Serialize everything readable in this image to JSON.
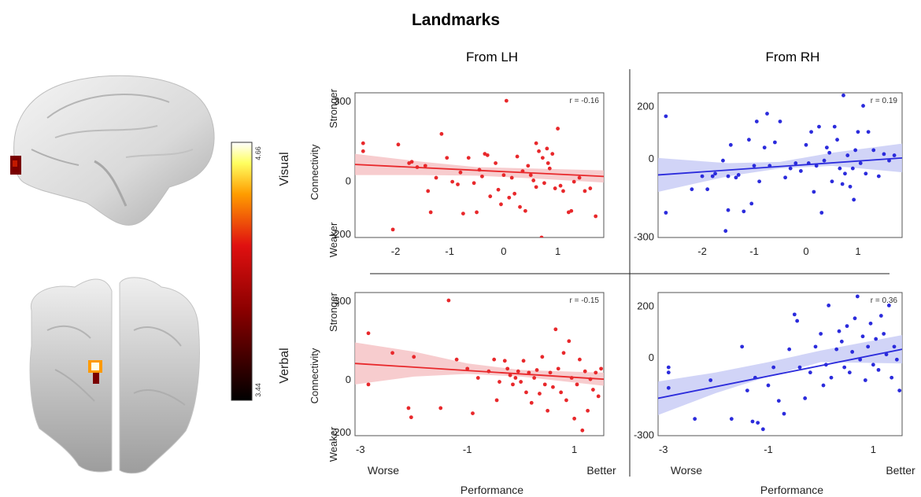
{
  "title": "Landmarks",
  "column_headers": [
    "From LH",
    "From RH"
  ],
  "colorbar": {
    "max_label": "4.66",
    "min_label": "3.44",
    "top_label": "Visual",
    "bottom_label": "Verbal"
  },
  "labels": {
    "stronger": "Stronger",
    "weaker": "Weaker",
    "connectivity": "Connectivity",
    "worse": "Worse",
    "better": "Better",
    "performance": "Performance"
  },
  "colors": {
    "lh": "#e8282b",
    "lh_band": "#f6c3c6",
    "rh": "#2b2bdc",
    "rh_band": "#c9cdf6"
  },
  "chart_data": [
    {
      "id": "visual-lh",
      "type": "scatter",
      "color": "lh",
      "r_label": "r = -0.16",
      "xlim": [
        -2.75,
        1.85
      ],
      "ylim": [
        -215,
        330
      ],
      "xticks": [
        -2,
        -1,
        0,
        1
      ],
      "yticks": [
        300,
        0,
        -200
      ],
      "fit": {
        "x": [
          -2.75,
          1.85
        ],
        "y": [
          60,
          15
        ]
      },
      "band_upper": [
        [
          -2.75,
          100
        ],
        [
          -1.5,
          70
        ],
        [
          -0.5,
          50
        ],
        [
          0.5,
          45
        ],
        [
          1.85,
          38
        ]
      ],
      "band_lower": [
        [
          -2.75,
          20
        ],
        [
          -1.5,
          20
        ],
        [
          -0.5,
          18
        ],
        [
          0.5,
          8
        ],
        [
          1.85,
          -8
        ]
      ],
      "points": [
        [
          -2.6,
          140
        ],
        [
          -2.6,
          110
        ],
        [
          -2.05,
          -185
        ],
        [
          -1.95,
          135
        ],
        [
          -1.75,
          65
        ],
        [
          -1.7,
          70
        ],
        [
          -1.6,
          50
        ],
        [
          -1.45,
          55
        ],
        [
          -1.4,
          -40
        ],
        [
          -1.35,
          -120
        ],
        [
          -1.25,
          10
        ],
        [
          -1.15,
          175
        ],
        [
          -1.05,
          85
        ],
        [
          -0.95,
          -5
        ],
        [
          -0.85,
          -15
        ],
        [
          -0.8,
          30
        ],
        [
          -0.75,
          -125
        ],
        [
          -0.65,
          85
        ],
        [
          -0.55,
          -10
        ],
        [
          -0.5,
          -120
        ],
        [
          -0.45,
          40
        ],
        [
          -0.4,
          15
        ],
        [
          -0.35,
          100
        ],
        [
          -0.3,
          95
        ],
        [
          -0.25,
          -60
        ],
        [
          -0.15,
          65
        ],
        [
          -0.1,
          -35
        ],
        [
          -0.05,
          -90
        ],
        [
          0.0,
          20
        ],
        [
          0.05,
          300
        ],
        [
          0.1,
          -65
        ],
        [
          0.15,
          10
        ],
        [
          0.2,
          -50
        ],
        [
          0.25,
          90
        ],
        [
          0.3,
          -100
        ],
        [
          0.35,
          35
        ],
        [
          0.4,
          -115
        ],
        [
          0.45,
          55
        ],
        [
          0.5,
          20
        ],
        [
          0.55,
          0
        ],
        [
          0.6,
          -25
        ],
        [
          0.6,
          140
        ],
        [
          0.65,
          110
        ],
        [
          0.7,
          -215
        ],
        [
          0.72,
          85
        ],
        [
          0.75,
          -10
        ],
        [
          0.8,
          120
        ],
        [
          0.82,
          65
        ],
        [
          0.85,
          45
        ],
        [
          0.9,
          100
        ],
        [
          0.95,
          -30
        ],
        [
          1.0,
          195
        ],
        [
          1.05,
          -20
        ],
        [
          1.1,
          -40
        ],
        [
          1.2,
          -120
        ],
        [
          1.25,
          -115
        ],
        [
          1.3,
          -5
        ],
        [
          1.4,
          10
        ],
        [
          1.5,
          -40
        ],
        [
          1.6,
          -30
        ],
        [
          1.7,
          -135
        ]
      ]
    },
    {
      "id": "visual-rh",
      "type": "scatter",
      "color": "rh",
      "r_label": "r = 0.19",
      "xlim": [
        -2.85,
        1.85
      ],
      "ylim": [
        -305,
        250
      ],
      "xticks": [
        -2,
        -1,
        0,
        1
      ],
      "yticks": [
        200,
        0,
        -300
      ],
      "fit": {
        "x": [
          -2.85,
          1.85
        ],
        "y": [
          -65,
          0
        ]
      },
      "band_upper": [
        [
          -2.85,
          0
        ],
        [
          -1.5,
          -20
        ],
        [
          -0.5,
          -15
        ],
        [
          0.5,
          20
        ],
        [
          1.85,
          55
        ]
      ],
      "band_lower": [
        [
          -2.85,
          -130
        ],
        [
          -1.5,
          -70
        ],
        [
          -0.5,
          -40
        ],
        [
          0.5,
          -30
        ],
        [
          1.85,
          -55
        ]
      ],
      "points": [
        [
          -2.7,
          160
        ],
        [
          -2.7,
          -210
        ],
        [
          -2.2,
          -120
        ],
        [
          -2.0,
          -70
        ],
        [
          -1.9,
          -120
        ],
        [
          -1.8,
          -70
        ],
        [
          -1.75,
          -60
        ],
        [
          -1.6,
          -10
        ],
        [
          -1.55,
          -280
        ],
        [
          -1.5,
          -200
        ],
        [
          -1.5,
          -70
        ],
        [
          -1.45,
          50
        ],
        [
          -1.35,
          -75
        ],
        [
          -1.3,
          -65
        ],
        [
          -1.2,
          -205
        ],
        [
          -1.1,
          70
        ],
        [
          -1.05,
          -175
        ],
        [
          -1.0,
          -30
        ],
        [
          -0.95,
          140
        ],
        [
          -0.9,
          -90
        ],
        [
          -0.8,
          40
        ],
        [
          -0.75,
          170
        ],
        [
          -0.7,
          -30
        ],
        [
          -0.6,
          60
        ],
        [
          -0.5,
          140
        ],
        [
          -0.4,
          -75
        ],
        [
          -0.3,
          -40
        ],
        [
          -0.2,
          -20
        ],
        [
          -0.1,
          -50
        ],
        [
          0.0,
          50
        ],
        [
          0.05,
          -20
        ],
        [
          0.1,
          100
        ],
        [
          0.15,
          -130
        ],
        [
          0.2,
          -30
        ],
        [
          0.25,
          120
        ],
        [
          0.3,
          -210
        ],
        [
          0.35,
          -10
        ],
        [
          0.4,
          40
        ],
        [
          0.45,
          20
        ],
        [
          0.5,
          -90
        ],
        [
          0.55,
          120
        ],
        [
          0.6,
          70
        ],
        [
          0.65,
          -40
        ],
        [
          0.7,
          -100
        ],
        [
          0.72,
          240
        ],
        [
          0.75,
          -60
        ],
        [
          0.8,
          10
        ],
        [
          0.85,
          -110
        ],
        [
          0.9,
          -40
        ],
        [
          0.92,
          -160
        ],
        [
          0.95,
          30
        ],
        [
          1.0,
          100
        ],
        [
          1.05,
          -20
        ],
        [
          1.1,
          200
        ],
        [
          1.15,
          -60
        ],
        [
          1.2,
          100
        ],
        [
          1.3,
          30
        ],
        [
          1.4,
          -70
        ],
        [
          1.5,
          15
        ],
        [
          1.6,
          -10
        ],
        [
          1.7,
          10
        ]
      ]
    },
    {
      "id": "verbal-lh",
      "type": "scatter",
      "color": "lh",
      "r_label": "r = -0.15",
      "xlim": [
        -3.1,
        1.55
      ],
      "ylim": [
        -215,
        330
      ],
      "xticks": [
        -3,
        -1,
        1
      ],
      "yticks": [
        300,
        0,
        -200
      ],
      "fit": {
        "x": [
          -3.1,
          1.55
        ],
        "y": [
          60,
          0
        ]
      },
      "band_upper": [
        [
          -3.1,
          140
        ],
        [
          -2.0,
          105
        ],
        [
          -1.0,
          60
        ],
        [
          0.0,
          35
        ],
        [
          1.55,
          25
        ]
      ],
      "band_lower": [
        [
          -3.1,
          -20
        ],
        [
          -2.0,
          10
        ],
        [
          -1.0,
          20
        ],
        [
          0.0,
          10
        ],
        [
          1.55,
          -25
        ]
      ],
      "points": [
        [
          -2.85,
          -20
        ],
        [
          -2.85,
          175
        ],
        [
          -2.4,
          100
        ],
        [
          -2.1,
          -110
        ],
        [
          -2.05,
          -145
        ],
        [
          -2.0,
          85
        ],
        [
          -1.5,
          -110
        ],
        [
          -1.35,
          300
        ],
        [
          -1.2,
          75
        ],
        [
          -1.0,
          40
        ],
        [
          -0.9,
          -130
        ],
        [
          -0.8,
          5
        ],
        [
          -0.6,
          30
        ],
        [
          -0.5,
          75
        ],
        [
          -0.45,
          -80
        ],
        [
          -0.4,
          -10
        ],
        [
          -0.3,
          70
        ],
        [
          -0.25,
          40
        ],
        [
          -0.2,
          15
        ],
        [
          -0.15,
          -20
        ],
        [
          -0.1,
          5
        ],
        [
          -0.05,
          30
        ],
        [
          0.0,
          -10
        ],
        [
          0.05,
          70
        ],
        [
          0.1,
          -50
        ],
        [
          0.15,
          25
        ],
        [
          0.2,
          -90
        ],
        [
          0.25,
          5
        ],
        [
          0.3,
          35
        ],
        [
          0.35,
          -55
        ],
        [
          0.4,
          85
        ],
        [
          0.45,
          -20
        ],
        [
          0.5,
          -120
        ],
        [
          0.55,
          25
        ],
        [
          0.6,
          -30
        ],
        [
          0.65,
          190
        ],
        [
          0.7,
          40
        ],
        [
          0.75,
          -50
        ],
        [
          0.8,
          100
        ],
        [
          0.85,
          -80
        ],
        [
          0.9,
          145
        ],
        [
          0.95,
          5
        ],
        [
          1.0,
          -150
        ],
        [
          1.05,
          -20
        ],
        [
          1.1,
          75
        ],
        [
          1.15,
          -195
        ],
        [
          1.2,
          30
        ],
        [
          1.25,
          -120
        ],
        [
          1.3,
          0
        ],
        [
          1.35,
          -40
        ],
        [
          1.4,
          25
        ],
        [
          1.45,
          -65
        ],
        [
          1.5,
          40
        ]
      ]
    },
    {
      "id": "verbal-rh",
      "type": "scatter",
      "color": "rh",
      "r_label": "r = 0.36",
      "xlim": [
        -3.1,
        1.55
      ],
      "ylim": [
        -305,
        250
      ],
      "xticks": [
        -3,
        -1,
        1
      ],
      "yticks": [
        200,
        0,
        -300
      ],
      "fit": {
        "x": [
          -3.1,
          1.55
        ],
        "y": [
          -160,
          30
        ]
      },
      "band_upper": [
        [
          -3.1,
          -95
        ],
        [
          -2.0,
          -60
        ],
        [
          -1.0,
          -20
        ],
        [
          0.0,
          25
        ],
        [
          1.55,
          85
        ]
      ],
      "band_lower": [
        [
          -3.1,
          -225
        ],
        [
          -2.0,
          -140
        ],
        [
          -1.0,
          -75
        ],
        [
          0.0,
          -20
        ],
        [
          1.55,
          -25
        ]
      ],
      "points": [
        [
          -2.9,
          -120
        ],
        [
          -2.9,
          -40
        ],
        [
          -2.9,
          -60
        ],
        [
          -2.4,
          -240
        ],
        [
          -2.1,
          -90
        ],
        [
          -1.7,
          -240
        ],
        [
          -1.5,
          40
        ],
        [
          -1.4,
          -130
        ],
        [
          -1.3,
          -250
        ],
        [
          -1.25,
          -80
        ],
        [
          -1.2,
          -255
        ],
        [
          -1.1,
          -280
        ],
        [
          -1.0,
          -110
        ],
        [
          -0.9,
          -40
        ],
        [
          -0.8,
          -170
        ],
        [
          -0.7,
          -220
        ],
        [
          -0.6,
          30
        ],
        [
          -0.5,
          165
        ],
        [
          -0.45,
          140
        ],
        [
          -0.4,
          -40
        ],
        [
          -0.3,
          -160
        ],
        [
          -0.2,
          -60
        ],
        [
          -0.1,
          40
        ],
        [
          0.0,
          90
        ],
        [
          0.05,
          -110
        ],
        [
          0.1,
          -30
        ],
        [
          0.15,
          200
        ],
        [
          0.2,
          -80
        ],
        [
          0.3,
          30
        ],
        [
          0.35,
          100
        ],
        [
          0.4,
          60
        ],
        [
          0.45,
          -40
        ],
        [
          0.5,
          120
        ],
        [
          0.55,
          -60
        ],
        [
          0.6,
          20
        ],
        [
          0.65,
          150
        ],
        [
          0.7,
          235
        ],
        [
          0.75,
          -10
        ],
        [
          0.8,
          80
        ],
        [
          0.85,
          -90
        ],
        [
          0.9,
          40
        ],
        [
          0.95,
          130
        ],
        [
          1.0,
          -30
        ],
        [
          1.05,
          70
        ],
        [
          1.1,
          -50
        ],
        [
          1.15,
          160
        ],
        [
          1.2,
          90
        ],
        [
          1.25,
          10
        ],
        [
          1.3,
          200
        ],
        [
          1.35,
          -80
        ],
        [
          1.4,
          40
        ],
        [
          1.45,
          -10
        ],
        [
          1.5,
          -130
        ]
      ]
    }
  ]
}
